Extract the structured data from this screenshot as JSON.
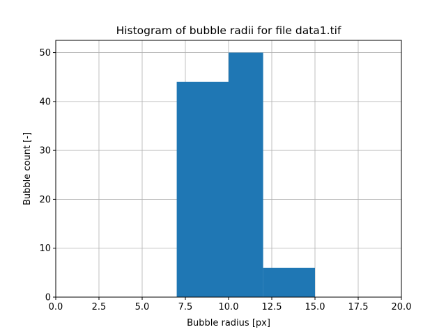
{
  "chart_data": {
    "type": "bar",
    "title": "Histogram of bubble radii for file data1.tif",
    "xlabel": "Bubble radius [px]",
    "ylabel": "Bubble count [-]",
    "xlim": [
      0,
      20
    ],
    "ylim": [
      0,
      52.5
    ],
    "xticks": [
      0,
      2.5,
      5,
      7.5,
      10,
      12.5,
      15,
      17.5,
      20
    ],
    "xtick_labels": [
      "0.0",
      "2.5",
      "5.0",
      "7.5",
      "10.0",
      "12.5",
      "15.0",
      "17.5",
      "20.0"
    ],
    "yticks": [
      0,
      10,
      20,
      30,
      40,
      50
    ],
    "ytick_labels": [
      "0",
      "10",
      "20",
      "30",
      "40",
      "50"
    ],
    "grid": true,
    "bar_color": "#1f77b4",
    "bins": [
      {
        "x0": 7,
        "x1": 10,
        "value": 44
      },
      {
        "x0": 10,
        "x1": 12,
        "value": 50
      },
      {
        "x0": 12,
        "x1": 15,
        "value": 6
      }
    ]
  }
}
